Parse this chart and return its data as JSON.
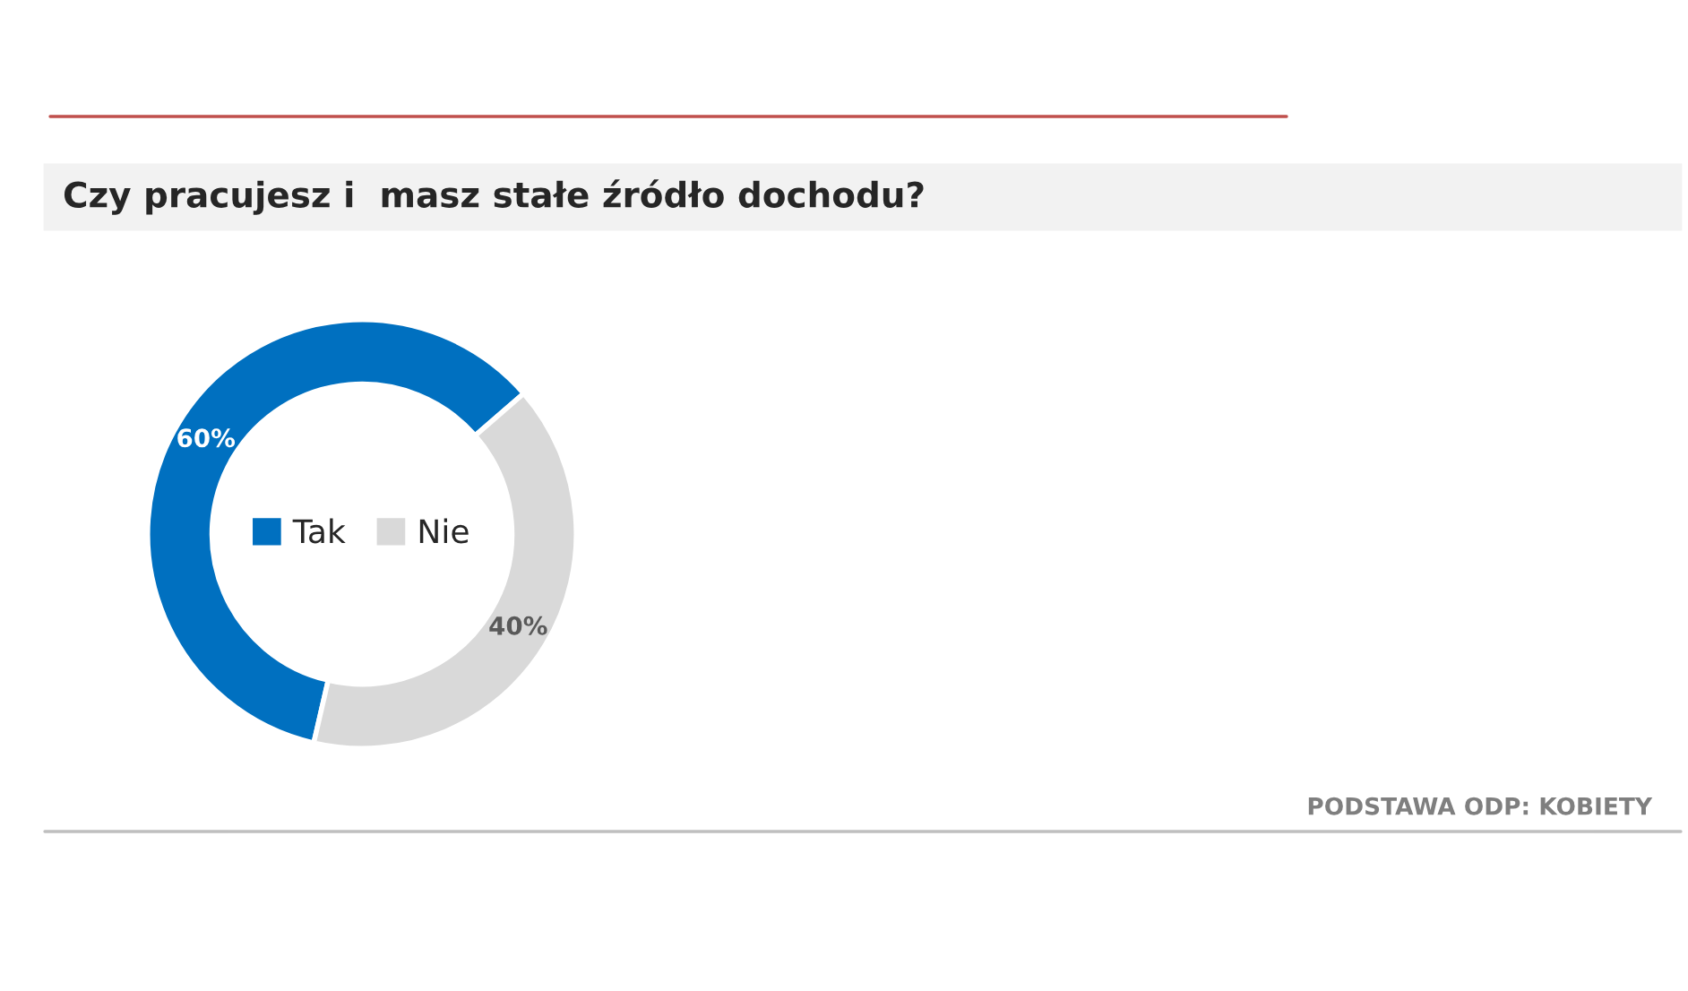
{
  "chart_data": {
    "type": "donut",
    "title": "Czy pracujesz i  masz stałe źródło dochodu?",
    "categories": [
      "Tak",
      "Nie"
    ],
    "values": [
      60,
      40
    ],
    "colors": [
      "#0070c0",
      "#d9d9d9"
    ],
    "value_labels": [
      "60%",
      "40%"
    ],
    "legend": "center",
    "annotations": [
      "PODSTAWA ODP: KOBIETY"
    ]
  }
}
